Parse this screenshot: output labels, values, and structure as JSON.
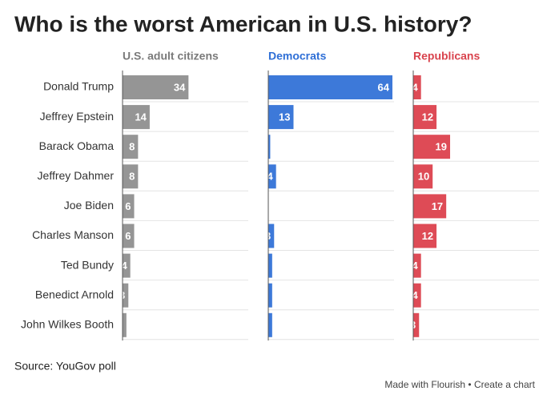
{
  "chart_data": {
    "type": "bar",
    "orientation": "horizontal",
    "title": "Who is the worst American in U.S. history?",
    "source": "Source: YouGov poll",
    "credit": "Made with Flourish • Create a chart",
    "categories": [
      "Donald Trump",
      "Jeffrey Epstein",
      "Barack Obama",
      "Jeffrey Dahmer",
      "Joe Biden",
      "Charles Manson",
      "Ted Bundy",
      "Benedict Arnold",
      "John Wilkes Booth"
    ],
    "xlim": [
      0,
      64
    ],
    "series": [
      {
        "name": "U.S. adult citizens",
        "color": "#959595",
        "header_color": "#7a7a7a",
        "values": [
          34,
          14,
          8,
          8,
          6,
          6,
          4,
          3,
          2
        ]
      },
      {
        "name": "Democrats",
        "color": "#3d79d9",
        "header_color": "#2f6fd6",
        "values": [
          64,
          13,
          1,
          4,
          0,
          3,
          2,
          2,
          2
        ]
      },
      {
        "name": "Republicans",
        "color": "#de4b56",
        "header_color": "#d9434d",
        "values": [
          4,
          12,
          19,
          10,
          17,
          12,
          4,
          4,
          3
        ]
      }
    ]
  }
}
